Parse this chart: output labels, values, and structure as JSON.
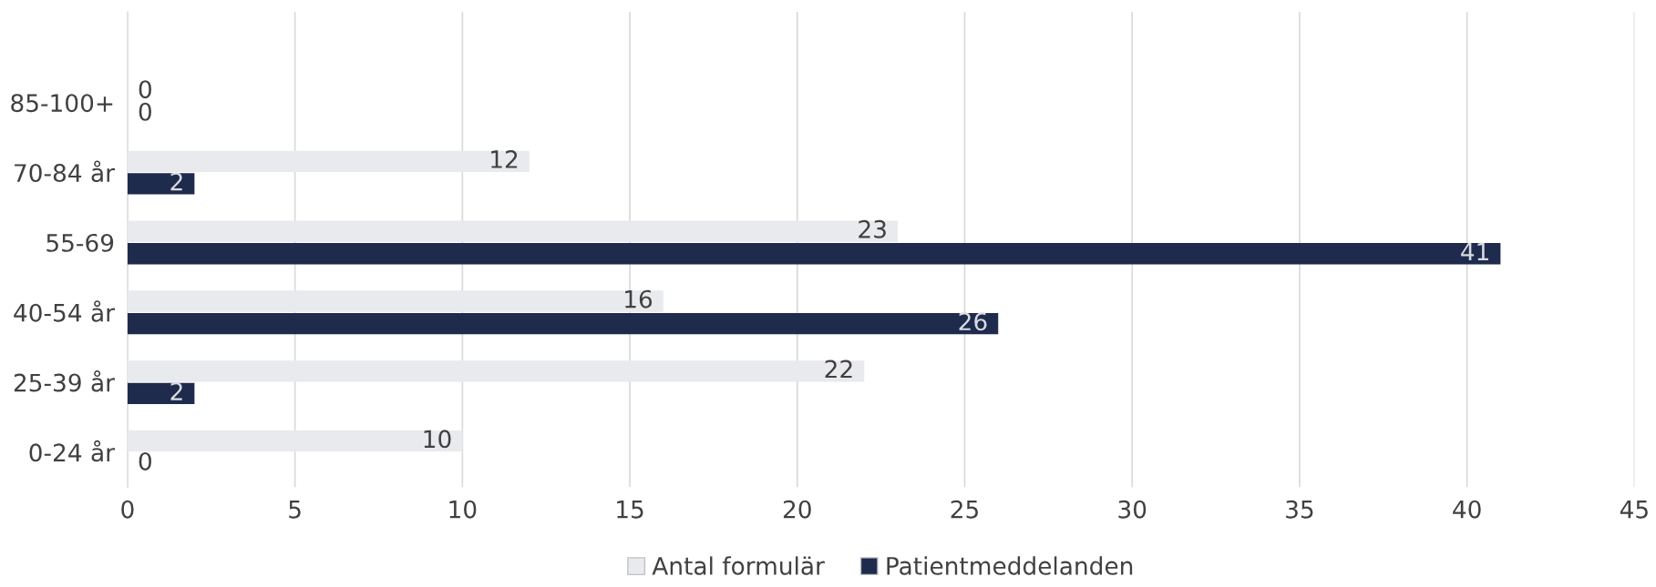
{
  "chart_data": {
    "type": "bar",
    "orientation": "horizontal",
    "categories": [
      "85-100+",
      "70-84 år",
      "55-69",
      "40-54 år",
      "25-39 år",
      "0-24 år"
    ],
    "series": [
      {
        "name": "Antal formulär",
        "color": "#e9eaee",
        "values": [
          0,
          12,
          23,
          16,
          22,
          10
        ]
      },
      {
        "name": "Patientmeddelanden",
        "color": "#1f2b4d",
        "values": [
          0,
          2,
          41,
          26,
          2,
          0
        ]
      }
    ],
    "xlim": [
      0,
      45
    ],
    "xticks": [
      0,
      5,
      10,
      15,
      20,
      25,
      30,
      35,
      40,
      45
    ],
    "grid": "x",
    "legend": "bottom",
    "data_labels": true
  }
}
